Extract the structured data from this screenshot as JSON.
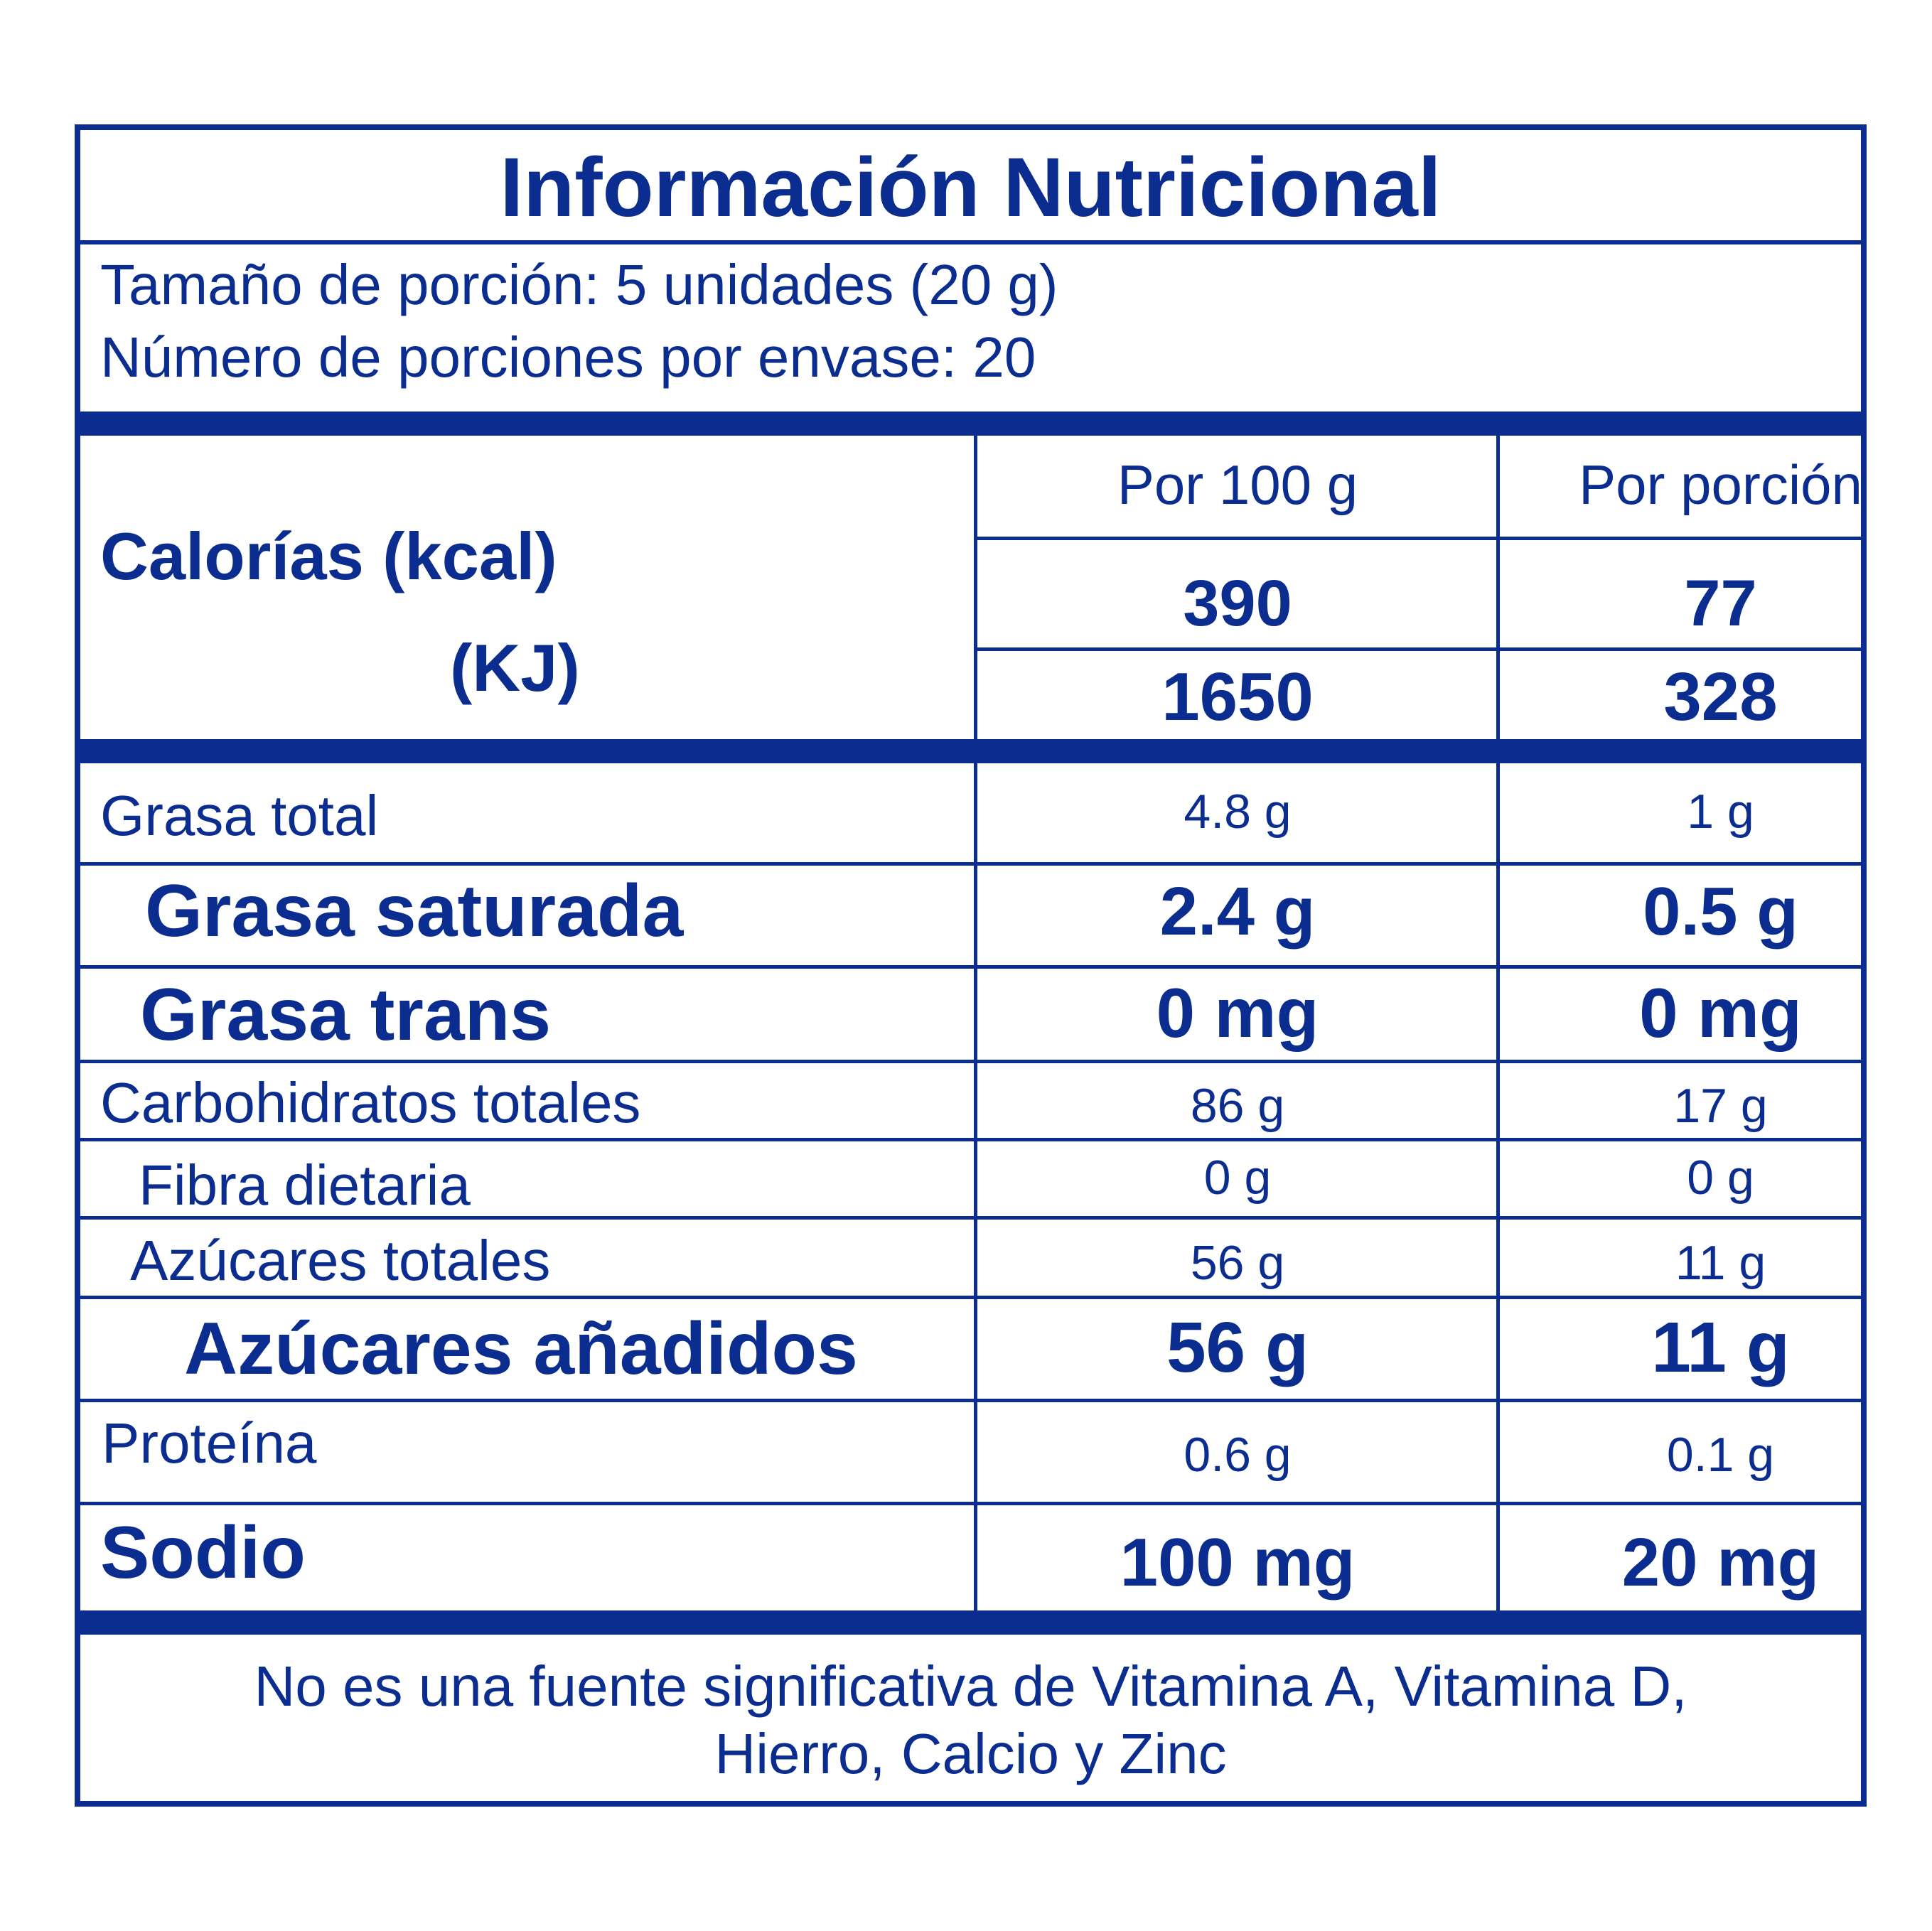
{
  "title": "Información Nutricional",
  "serving": {
    "size": "Tamaño de porción: 5 unidades (20 g)",
    "count": "Número de porciones por envase: 20"
  },
  "columns": {
    "per100": "Por 100 g",
    "perServing": "Por porción"
  },
  "energy": {
    "kcal_label": "Calorías (kcal)",
    "kj_label": "(KJ)",
    "kcal_100": "390",
    "kcal_serving": "77",
    "kj_100": "1650",
    "kj_serving": "328"
  },
  "nutrients": [
    {
      "label": "Grasa total",
      "per100": "4.8 g",
      "perServing": "1 g"
    },
    {
      "label": "Grasa saturada",
      "per100": "2.4 g",
      "perServing": "0.5 g"
    },
    {
      "label": "Grasa trans",
      "per100": "0 mg",
      "perServing": "0 mg"
    },
    {
      "label": "Carbohidratos totales",
      "per100": "86 g",
      "perServing": "17 g"
    },
    {
      "label": "Fibra dietaria",
      "per100": "0 g",
      "perServing": "0 g"
    },
    {
      "label": "Azúcares totales",
      "per100": "56 g",
      "perServing": "11 g"
    },
    {
      "label": "Azúcares añadidos",
      "per100": "56 g",
      "perServing": "11 g"
    },
    {
      "label": "Proteína",
      "per100": "0.6 g",
      "perServing": "0.1 g"
    },
    {
      "label": "Sodio",
      "per100": "100 mg",
      "perServing": "20 mg"
    }
  ],
  "footer": {
    "line1": "No es una fuente significativa de Vitamina A, Vitamina D,",
    "line2": "Hierro, Calcio y Zinc"
  },
  "colors": {
    "primary": "#0b2d8f",
    "background": "#ffffff"
  }
}
